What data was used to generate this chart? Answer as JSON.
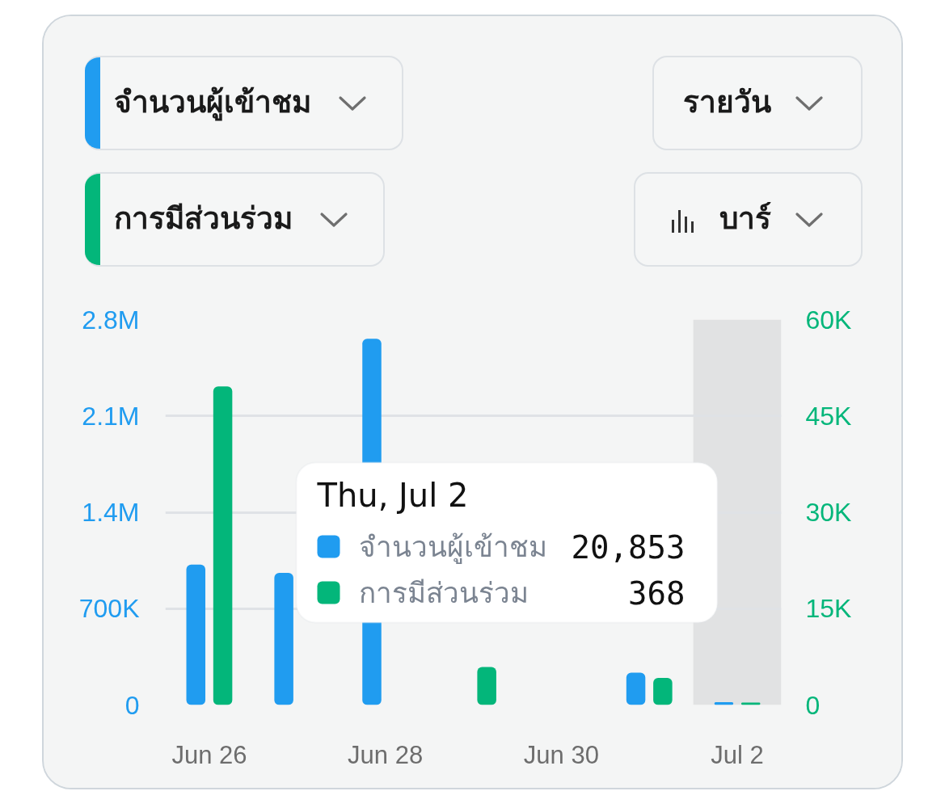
{
  "chart_data": {
    "type": "bar",
    "categories": [
      "Jun 26",
      null,
      "Jun 28",
      null,
      "Jun 30",
      null,
      "Jul 2"
    ],
    "series": [
      {
        "name": "จำนวนผู้เข้าชม",
        "color": "#209cf0",
        "values": [
          1020000,
          960000,
          2660000,
          null,
          null,
          235000,
          20853
        ]
      },
      {
        "name": "การมีส่วนร่วม",
        "color": "#03b67a",
        "axis": "y2",
        "values": [
          49600,
          null,
          null,
          5900,
          null,
          4200,
          368
        ]
      }
    ],
    "ylim": [
      0,
      2800000
    ],
    "yticks": [
      0,
      {
        "value": 700000,
        "label": "700K"
      },
      {
        "value": 1400000,
        "label": "1.4M"
      },
      {
        "value": 2100000,
        "label": "2.1M"
      },
      {
        "value": 2800000,
        "label": "2.8M"
      }
    ],
    "y2lim": [
      0,
      60000
    ],
    "y2ticks": [
      0,
      {
        "value": 15000,
        "label": "15K"
      },
      {
        "value": 30000,
        "label": "30K"
      },
      {
        "value": 45000,
        "label": "45K"
      },
      {
        "value": 60000,
        "label": "60K"
      }
    ],
    "grid": "y",
    "legend": "bottom left",
    "bands": [
      {
        "axis": "x",
        "from": "Jul 2",
        "to": "Jul 2",
        "color": "#e1e2e3"
      }
    ],
    "annotations": [
      "รายวัน",
      "บาร์",
      "Thu, Jul 2",
      "20,853",
      "368"
    ]
  }
}
